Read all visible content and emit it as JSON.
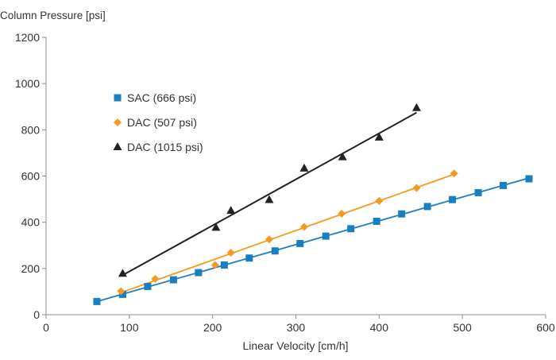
{
  "chart_data": {
    "type": "scatter",
    "title": "",
    "ylabel": "Column Pressure [psi]",
    "xlabel": "Linear Velocity [cm/h]",
    "xlim": [
      0,
      600
    ],
    "ylim": [
      0,
      1200
    ],
    "x_ticks": [
      0,
      100,
      200,
      300,
      400,
      500,
      600
    ],
    "y_ticks": [
      0,
      200,
      400,
      600,
      800,
      1000,
      1200
    ],
    "grid": false,
    "legend_position": "upper-left inside plot",
    "series": [
      {
        "name": "SAC (666 psi)",
        "marker": "square",
        "color": "#1a7fc1",
        "trendline": true,
        "points": [
          [
            61,
            57
          ],
          [
            92,
            88
          ],
          [
            122,
            122
          ],
          [
            153,
            151
          ],
          [
            183,
            182
          ],
          [
            214,
            215
          ],
          [
            244,
            245
          ],
          [
            275,
            276
          ],
          [
            305,
            308
          ],
          [
            336,
            340
          ],
          [
            366,
            372
          ],
          [
            397,
            404
          ],
          [
            427,
            436
          ],
          [
            458,
            468
          ],
          [
            488,
            498
          ],
          [
            519,
            528
          ],
          [
            549,
            559
          ],
          [
            580,
            588
          ]
        ]
      },
      {
        "name": "DAC (507 psi)",
        "marker": "diamond",
        "color": "#f39a1f",
        "trendline": true,
        "points": [
          [
            90,
            102
          ],
          [
            131,
            155
          ],
          [
            203,
            215
          ],
          [
            222,
            268
          ],
          [
            268,
            326
          ],
          [
            310,
            380
          ],
          [
            355,
            437
          ],
          [
            400,
            492
          ],
          [
            445,
            548
          ],
          [
            490,
            611
          ]
        ]
      },
      {
        "name": "DAC (1015 psi)",
        "marker": "triangle",
        "color": "#222222",
        "trendline": true,
        "points": [
          [
            92,
            178
          ],
          [
            204,
            377
          ],
          [
            222,
            450
          ],
          [
            268,
            497
          ],
          [
            310,
            633
          ],
          [
            356,
            682
          ],
          [
            400,
            767
          ],
          [
            445,
            895
          ]
        ]
      }
    ]
  }
}
